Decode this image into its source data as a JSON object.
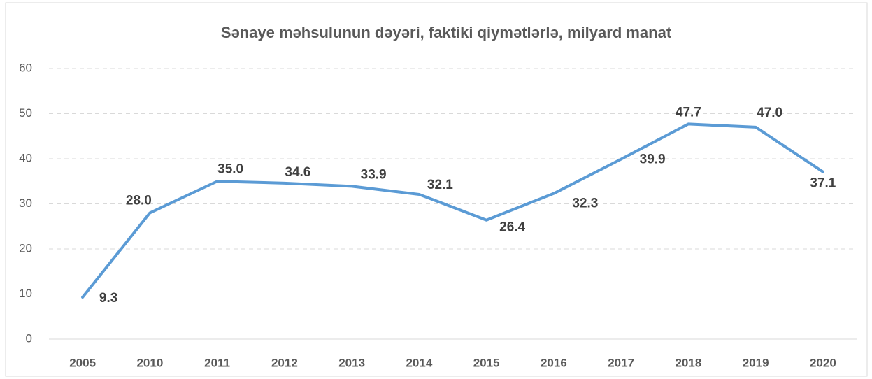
{
  "chart_data": {
    "type": "line",
    "title": "Sənaye məhsulunun dəyəri, faktiki qiymətlərlə, milyard manat",
    "categories": [
      "2005",
      "2010",
      "2011",
      "2012",
      "2013",
      "2014",
      "2015",
      "2016",
      "2017",
      "2018",
      "2019",
      "2020"
    ],
    "series": [
      {
        "name": "Sənaye məhsulunun dəyəri",
        "color": "#5b9bd5",
        "values": [
          9.3,
          28.0,
          35.0,
          34.6,
          33.9,
          32.1,
          26.4,
          32.3,
          39.9,
          47.7,
          47.0,
          37.1
        ],
        "value_labels": [
          "9.3",
          "28.0",
          "35.0",
          "34.6",
          "33.9",
          "32.1",
          "26.4",
          "32.3",
          "39.9",
          "47.7",
          "47.0",
          "37.1"
        ]
      }
    ],
    "ylim": [
      0,
      60
    ],
    "yticks": [
      0,
      10,
      20,
      30,
      40,
      50,
      60
    ],
    "grid": true
  }
}
